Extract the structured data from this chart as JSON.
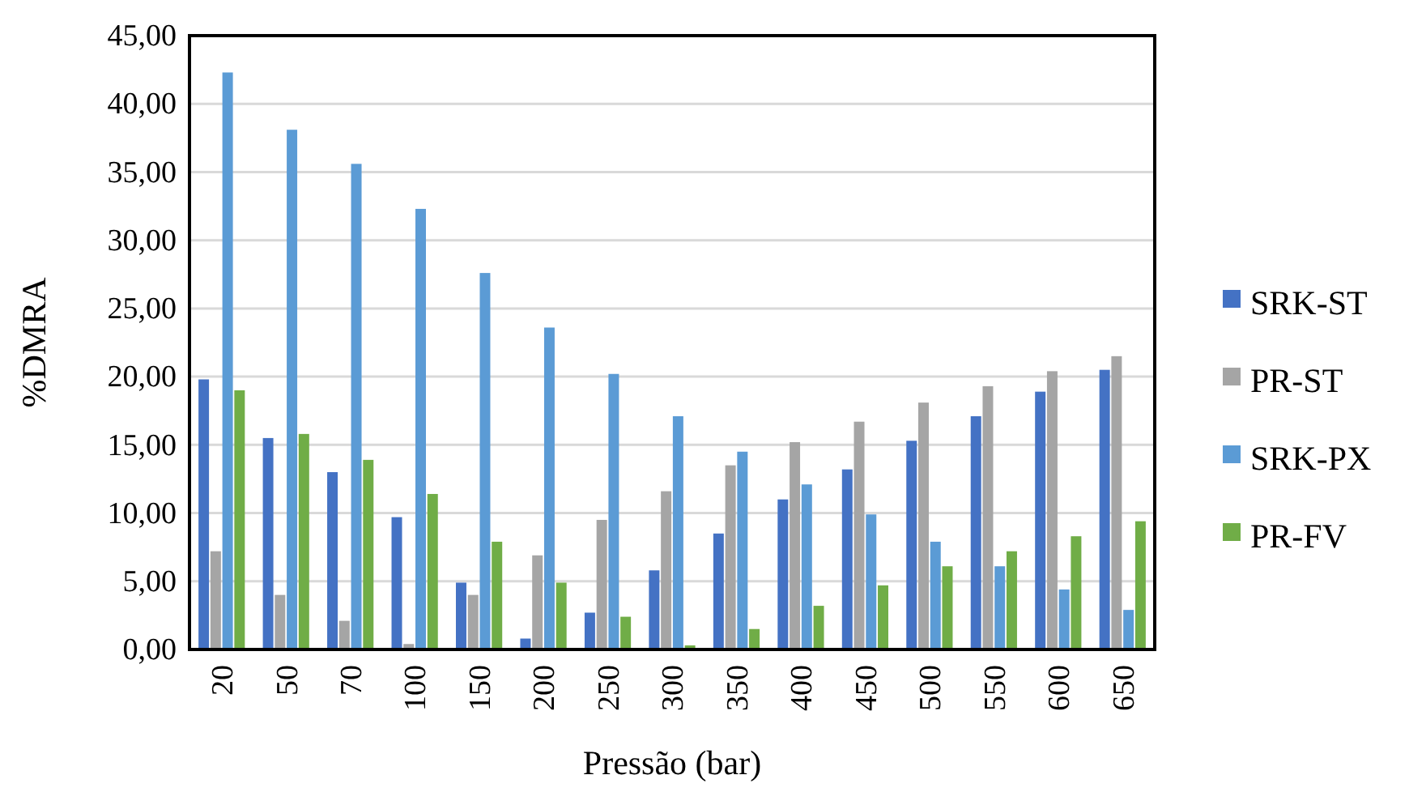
{
  "chart_data": {
    "type": "bar",
    "xlabel": "Pressão (bar)",
    "ylabel": "%DMRA",
    "categories": [
      "20",
      "50",
      "70",
      "100",
      "150",
      "200",
      "250",
      "300",
      "350",
      "400",
      "450",
      "500",
      "550",
      "600",
      "650"
    ],
    "series": [
      {
        "name": "SRK-ST",
        "color": "#4472c4",
        "values": [
          19.8,
          15.5,
          13.0,
          9.7,
          4.9,
          0.8,
          2.7,
          5.8,
          8.5,
          11.0,
          13.2,
          15.3,
          17.1,
          18.9,
          20.5
        ]
      },
      {
        "name": "PR-ST",
        "color": "#a5a5a5",
        "values": [
          7.2,
          4.0,
          2.1,
          0.4,
          4.0,
          6.9,
          9.5,
          11.6,
          13.5,
          15.2,
          16.7,
          18.1,
          19.3,
          20.4,
          21.5
        ]
      },
      {
        "name": "SRK-PX",
        "color": "#5b9bd5",
        "values": [
          42.3,
          38.1,
          35.6,
          32.3,
          27.6,
          23.6,
          20.2,
          17.1,
          14.5,
          12.1,
          9.9,
          7.9,
          6.1,
          4.4,
          2.9
        ]
      },
      {
        "name": "PR-FV",
        "color": "#70ad47",
        "values": [
          19.0,
          15.8,
          13.9,
          11.4,
          7.9,
          4.9,
          2.4,
          0.3,
          1.5,
          3.2,
          4.7,
          6.1,
          7.2,
          8.3,
          9.4
        ]
      }
    ],
    "ylim": [
      0,
      45
    ],
    "yticks": [
      {
        "value": 0,
        "label": "0,00"
      },
      {
        "value": 5,
        "label": "5,00"
      },
      {
        "value": 10,
        "label": "10,00"
      },
      {
        "value": 15,
        "label": "15,00"
      },
      {
        "value": 20,
        "label": "20,00"
      },
      {
        "value": 25,
        "label": "25,00"
      },
      {
        "value": 30,
        "label": "30,00"
      },
      {
        "value": 35,
        "label": "35,00"
      },
      {
        "value": 40,
        "label": "40,00"
      },
      {
        "value": 45,
        "label": "45,00"
      }
    ],
    "grid": "y",
    "legend": "right"
  }
}
